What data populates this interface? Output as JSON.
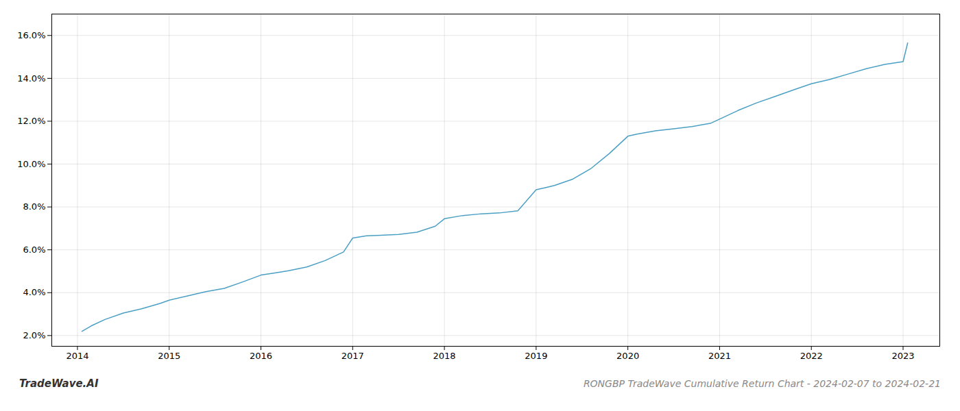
{
  "chart_data": {
    "type": "line",
    "title": "RONGBP TradeWave Cumulative Return Chart - 2024-02-07 to 2024-02-21",
    "annotations": [
      "TradeWave.AI"
    ],
    "color": "#4a9fc4",
    "x": [
      2014.05,
      2014.15,
      2014.3,
      2014.5,
      2014.7,
      2014.9,
      2015.0,
      2015.2,
      2015.4,
      2015.6,
      2015.8,
      2016.0,
      2016.15,
      2016.3,
      2016.5,
      2016.7,
      2016.9,
      2017.0,
      2017.15,
      2017.3,
      2017.5,
      2017.7,
      2017.9,
      2018.0,
      2018.2,
      2018.4,
      2018.6,
      2018.8,
      2019.0,
      2019.1,
      2019.2,
      2019.4,
      2019.6,
      2019.8,
      2020.0,
      2020.1,
      2020.3,
      2020.5,
      2020.7,
      2020.9,
      2021.0,
      2021.2,
      2021.4,
      2021.6,
      2021.8,
      2022.0,
      2022.2,
      2022.4,
      2022.6,
      2022.8,
      2023.0,
      2023.05
    ],
    "values": [
      2.2,
      2.45,
      2.75,
      3.05,
      3.25,
      3.5,
      3.65,
      3.85,
      4.05,
      4.2,
      4.5,
      4.82,
      4.92,
      5.02,
      5.2,
      5.5,
      5.9,
      6.55,
      6.65,
      6.68,
      6.72,
      6.82,
      7.1,
      7.45,
      7.6,
      7.68,
      7.72,
      7.82,
      8.8,
      8.9,
      9.0,
      9.3,
      9.8,
      10.5,
      11.3,
      11.4,
      11.55,
      11.65,
      11.75,
      11.9,
      12.1,
      12.5,
      12.85,
      13.15,
      13.45,
      13.75,
      13.95,
      14.2,
      14.45,
      14.65,
      14.78,
      15.65
    ],
    "xlim": [
      2013.72,
      2023.4
    ],
    "xticks": [
      2014,
      2015,
      2016,
      2017,
      2018,
      2019,
      2020,
      2021,
      2022,
      2023
    ],
    "ylim": [
      1.5,
      17.0
    ],
    "yticks": [
      {
        "value": 2.0,
        "label": "2.0%"
      },
      {
        "value": 4.0,
        "label": "4.0%"
      },
      {
        "value": 6.0,
        "label": "6.0%"
      },
      {
        "value": 8.0,
        "label": "8.0%"
      },
      {
        "value": 10.0,
        "label": "10.0%"
      },
      {
        "value": 12.0,
        "label": "12.0%"
      },
      {
        "value": 14.0,
        "label": "14.0%"
      },
      {
        "value": 16.0,
        "label": "16.0%"
      }
    ],
    "grid": true
  }
}
